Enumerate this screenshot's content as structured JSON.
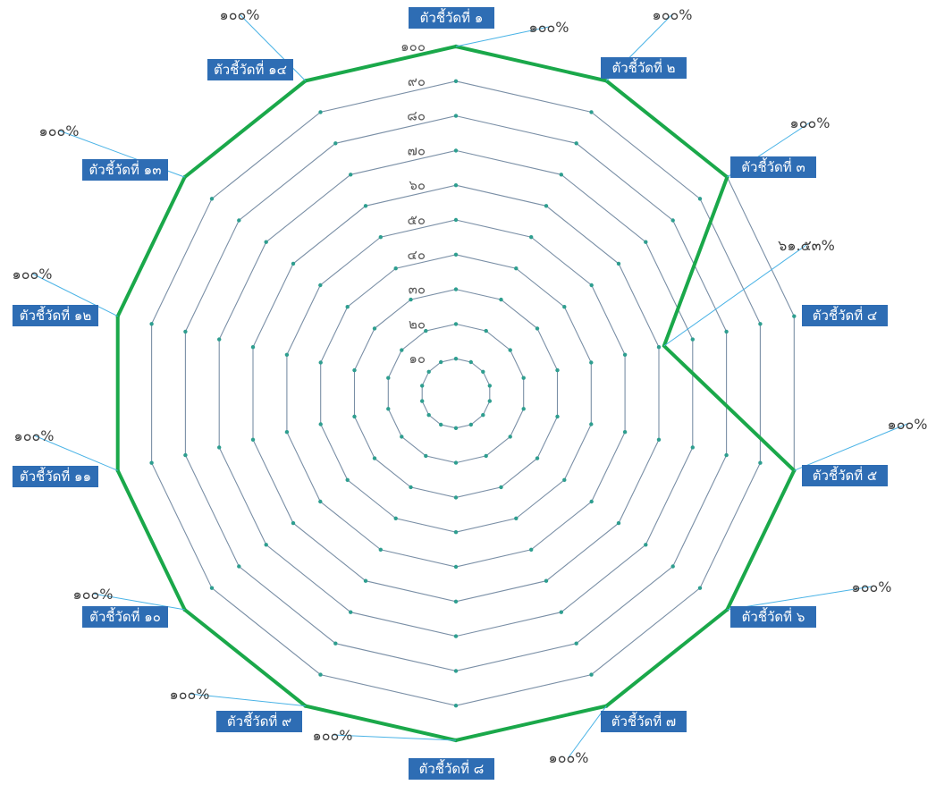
{
  "chart_data": {
    "type": "radar",
    "title": "",
    "categories": [
      "ตัวชี้วัดที่ ๑",
      "ตัวชี้วัดที่ ๒",
      "ตัวชี้วัดที่ ๓",
      "ตัวชี้วัดที่ ๔",
      "ตัวชี้วัดที่ ๕",
      "ตัวชี้วัดที่ ๖",
      "ตัวชี้วัดที่ ๗",
      "ตัวชี้วัดที่ ๘",
      "ตัวชี้วัดที่ ๙",
      "ตัวชี้วัดที่ ๑๐",
      "ตัวชี้วัดที่ ๑๑",
      "ตัวชี้วัดที่ ๑๒",
      "ตัวชี้วัดที่ ๑๓",
      "ตัวชี้วัดที่ ๑๔"
    ],
    "series": [
      {
        "values": [
          100,
          100,
          100,
          61.53,
          100,
          100,
          100,
          100,
          100,
          100,
          100,
          100,
          100,
          100
        ],
        "color": "#1aa84a"
      }
    ],
    "data_labels": [
      "๑๐๐%",
      "๑๐๐%",
      "๑๐๐%",
      "๖๑.๕๓%",
      "๑๐๐%",
      "๑๐๐%",
      "๑๐๐%",
      "๑๐๐%",
      "๑๐๐%",
      "๑๐๐%",
      "๑๐๐%",
      "๑๐๐%",
      "๑๐๐%",
      "๑๐๐%"
    ],
    "rlim": [
      0,
      100
    ],
    "ticks": [
      10,
      20,
      30,
      40,
      50,
      60,
      70,
      80,
      90,
      100
    ],
    "tick_labels": [
      "๑๐",
      "๒๐",
      "๓๐",
      "๔๐",
      "๕๐",
      "๖๐",
      "๗๐",
      "๘๐",
      "๙๐",
      "๑๐๐"
    ],
    "grid": true,
    "legend": "none",
    "colors": {
      "grid": "#7a8fa6",
      "grid_marker": "#2e9e8f",
      "category_box": "#2e6db4",
      "leader_line": "#4ab3e6"
    }
  }
}
